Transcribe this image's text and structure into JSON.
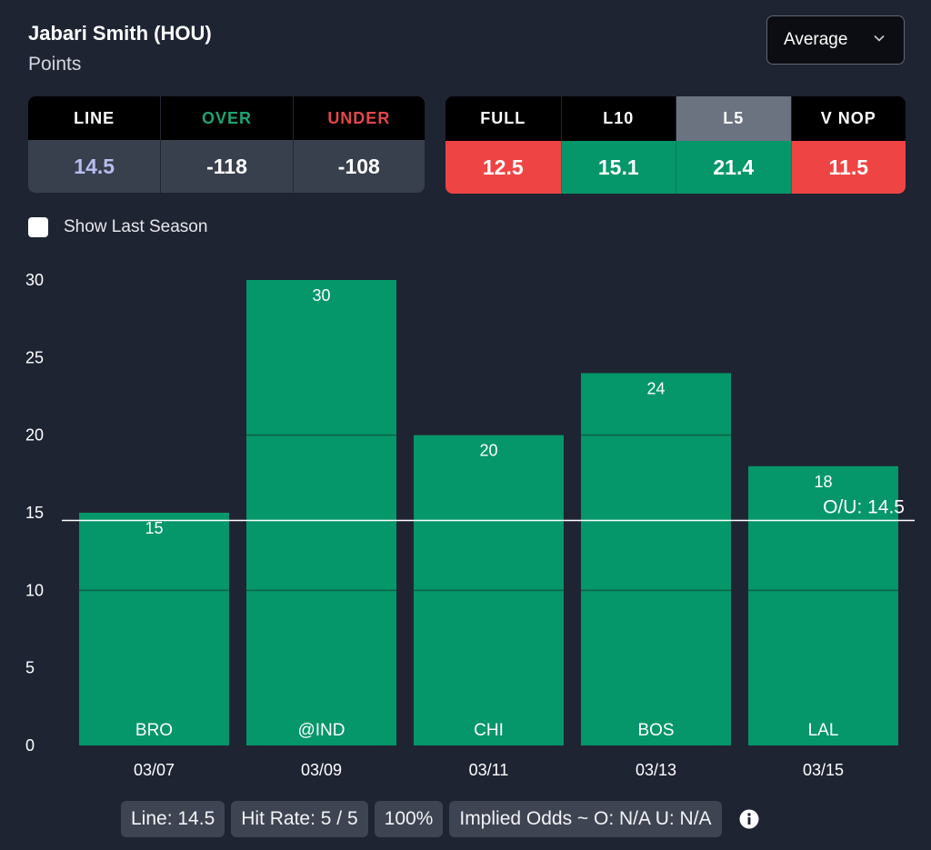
{
  "header": {
    "player": "Jabari Smith (HOU)",
    "stat": "Points",
    "mode_select": "Average"
  },
  "odds_table": {
    "headers": [
      {
        "label": "LINE",
        "color": "#ffffff"
      },
      {
        "label": "OVER",
        "color": "#1fa374"
      },
      {
        "label": "UNDER",
        "color": "#e2474a"
      }
    ],
    "values": [
      {
        "value": "14.5",
        "color": "#b7bdf0"
      },
      {
        "value": "-118",
        "color": "#ffffff"
      },
      {
        "value": "-108",
        "color": "#ffffff"
      }
    ]
  },
  "averages_table": {
    "columns": [
      {
        "label": "FULL",
        "value": "12.5",
        "value_color": "#ef4444",
        "header_bg": "#000000"
      },
      {
        "label": "L10",
        "value": "15.1",
        "value_color": "#059669",
        "header_bg": "#000000"
      },
      {
        "label": "L5",
        "value": "21.4",
        "value_color": "#059669",
        "header_bg": "#6b7280"
      },
      {
        "label": "V NOP",
        "value": "11.5",
        "value_color": "#ef4444",
        "header_bg": "#000000"
      }
    ]
  },
  "toggle": {
    "label": "Show Last Season",
    "checked": false
  },
  "chart_data": {
    "type": "bar",
    "title": "Points",
    "categories": [
      "03/07",
      "03/09",
      "03/11",
      "03/13",
      "03/15"
    ],
    "opponents": [
      "BRO",
      "@IND",
      "CHI",
      "BOS",
      "LAL"
    ],
    "values": [
      15,
      30,
      20,
      24,
      18
    ],
    "ylim": [
      0,
      30
    ],
    "yticks": [
      0,
      5,
      10,
      15,
      20,
      25,
      30
    ],
    "line": {
      "value": 14.5,
      "label": "O/U: 14.5"
    },
    "bar_color": "#059669",
    "grid_lines": [
      10,
      20
    ]
  },
  "footer": {
    "pills": [
      "Line: 14.5",
      "Hit Rate: 5 / 5",
      "100%",
      "Implied Odds ~ O: N/A U: N/A"
    ]
  }
}
